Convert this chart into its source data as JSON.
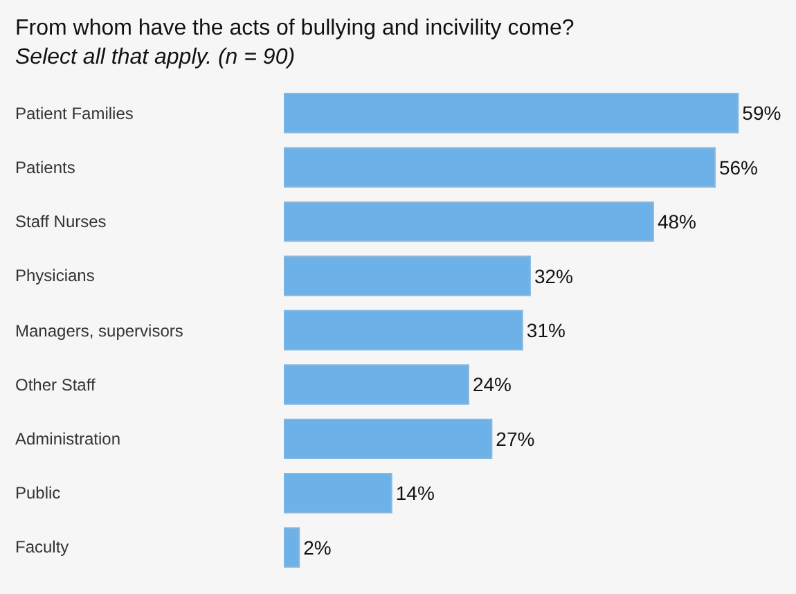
{
  "chart_data": {
    "type": "bar",
    "orientation": "horizontal",
    "title": "From whom have the acts of bullying and incivility come?",
    "subtitle": "Select all that apply. (n = 90)",
    "categories": [
      "Patient Families",
      "Patients",
      "Staff Nurses",
      "Physicians",
      "Managers, supervisors",
      "Other Staff",
      "Administration",
      "Public",
      "Faculty"
    ],
    "values": [
      59,
      56,
      48,
      32,
      31,
      24,
      27,
      14,
      2
    ],
    "value_labels": [
      "59%",
      "56%",
      "48%",
      "32%",
      "31%",
      "24%",
      "27%",
      "14%",
      "2%"
    ],
    "color": "#6cb2e8",
    "legend": false
  }
}
